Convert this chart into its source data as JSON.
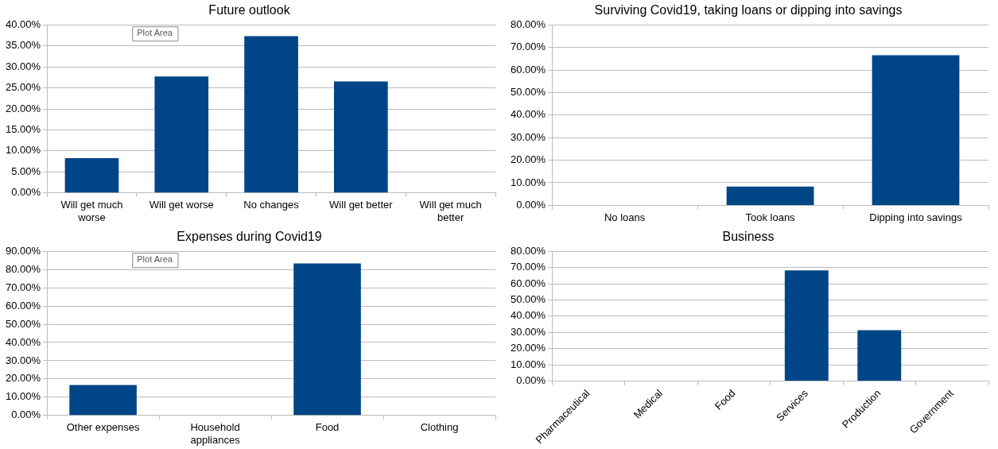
{
  "chart_data": [
    {
      "type": "bar",
      "title": "Future outlook",
      "categories": [
        "Will get much worse",
        "Will get worse",
        "No changes",
        "Will get better",
        "Will get much better"
      ],
      "values": [
        8.3,
        27.7,
        37.3,
        26.5,
        0
      ],
      "color": "#004586",
      "ylim": [
        0,
        40
      ],
      "yticks": [
        {
          "value": 0,
          "label": "0.00%"
        },
        {
          "value": 5,
          "label": "5.00%"
        },
        {
          "value": 10,
          "label": "10.00%"
        },
        {
          "value": 15,
          "label": "15.00%"
        },
        {
          "value": 20,
          "label": "20.00%"
        },
        {
          "value": 25,
          "label": "25.00%"
        },
        {
          "value": 30,
          "label": "30.00%"
        },
        {
          "value": 35,
          "label": "35.00%"
        },
        {
          "value": 40,
          "label": "40.00%"
        }
      ],
      "grid": "y",
      "annotations": [
        "Plot Area"
      ]
    },
    {
      "type": "bar",
      "title": "Surviving Covid19, taking loans or dipping into savings",
      "categories": [
        "No loans",
        "Took loans",
        "Dipping into savings"
      ],
      "values": [
        0,
        8.3,
        66.5
      ],
      "color": "#004586",
      "ylim": [
        0,
        80
      ],
      "yticks": [
        {
          "value": 0,
          "label": "0.00%"
        },
        {
          "value": 10,
          "label": "10.00%"
        },
        {
          "value": 20,
          "label": "20.00%"
        },
        {
          "value": 30,
          "label": "30.00%"
        },
        {
          "value": 40,
          "label": "40.00%"
        },
        {
          "value": 50,
          "label": "50.00%"
        },
        {
          "value": 60,
          "label": "60.00%"
        },
        {
          "value": 70,
          "label": "70.00%"
        },
        {
          "value": 80,
          "label": "80.00%"
        }
      ],
      "grid": "y"
    },
    {
      "type": "bar",
      "title": "Expenses during Covid19",
      "categories": [
        "Other expenses",
        "Household appliances",
        "Food",
        "Clothing"
      ],
      "values": [
        16.7,
        0,
        83.3,
        0
      ],
      "color": "#004586",
      "ylim": [
        0,
        90
      ],
      "yticks": [
        {
          "value": 0,
          "label": "0.00%"
        },
        {
          "value": 10,
          "label": "10.00%"
        },
        {
          "value": 20,
          "label": "20.00%"
        },
        {
          "value": 30,
          "label": "30.00%"
        },
        {
          "value": 40,
          "label": "40.00%"
        },
        {
          "value": 50,
          "label": "50.00%"
        },
        {
          "value": 60,
          "label": "60.00%"
        },
        {
          "value": 70,
          "label": "70.00%"
        },
        {
          "value": 80,
          "label": "80.00%"
        },
        {
          "value": 90,
          "label": "90.00%"
        }
      ],
      "grid": "y",
      "annotations": [
        "Plot Area"
      ]
    },
    {
      "type": "bar",
      "title": "Business",
      "categories": [
        "Pharmaceutical",
        "Medical",
        "Food",
        "Services",
        "Production",
        "Government"
      ],
      "values": [
        0,
        0,
        0,
        68.2,
        31.4,
        0
      ],
      "color": "#004586",
      "ylim": [
        0,
        80
      ],
      "yticks": [
        {
          "value": 0,
          "label": "0.00%"
        },
        {
          "value": 10,
          "label": "10.00%"
        },
        {
          "value": 20,
          "label": "20.00%"
        },
        {
          "value": 30,
          "label": "30.00%"
        },
        {
          "value": 40,
          "label": "40.00%"
        },
        {
          "value": 50,
          "label": "50.00%"
        },
        {
          "value": 60,
          "label": "60.00%"
        },
        {
          "value": 70,
          "label": "70.00%"
        },
        {
          "value": 80,
          "label": "80.00%"
        }
      ],
      "grid": "y"
    }
  ]
}
